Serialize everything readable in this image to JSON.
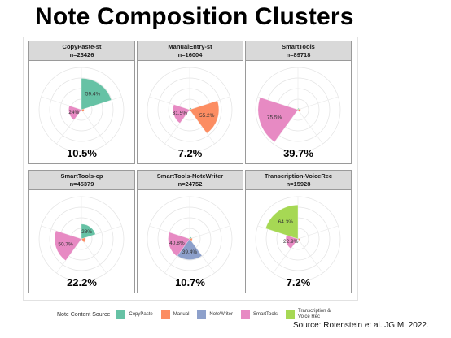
{
  "slide": {
    "title": "Note Composition Clusters",
    "source": "Source: Rotenstein et al. JGIM. 2022."
  },
  "colors": {
    "CopyPaste": "#66c2a5",
    "Manual": "#fc8d62",
    "NoteWriter": "#8da0cb",
    "SmartTools": "#e78ac3",
    "Transcription & Voice Rec": "#a6d854"
  },
  "chart_data": {
    "type": "polar-bar",
    "sources": [
      "CopyPaste",
      "Manual",
      "NoteWriter",
      "SmartTools",
      "Transcription & Voice Rec"
    ],
    "legend": {
      "title": "Note Content Source",
      "placement": "bottom",
      "items": [
        {
          "name": "CopyPaste",
          "label": "CopyPaste",
          "color": "#66c2a5"
        },
        {
          "name": "Manual",
          "label": "Manual",
          "color": "#fc8d62"
        },
        {
          "name": "NoteWriter",
          "label": "NoteWriter",
          "color": "#8da0cb"
        },
        {
          "name": "SmartTools",
          "label": "SmartTools",
          "color": "#e78ac3"
        },
        {
          "name": "Transcription & Voice Rec",
          "label": "Transcription &\nVoice Rec",
          "color": "#a6d854"
        }
      ]
    },
    "grid": true,
    "panels": [
      {
        "title": "CopyPaste-st",
        "n": "n=23426",
        "share": "10.5%",
        "values": [
          59.4,
          5,
          1,
          24,
          2
        ],
        "labels": [
          "59.4%",
          "",
          "",
          "24%",
          ""
        ]
      },
      {
        "title": "ManualEntry-st",
        "n": "n=16004",
        "share": "7.2%",
        "values": [
          4,
          55.2,
          2,
          31.5,
          1
        ],
        "labels": [
          "",
          "55.2%",
          "",
          "31.5%",
          ""
        ]
      },
      {
        "title": "SmartTools",
        "n": "n=89718",
        "share": "39.7%",
        "values": [
          3,
          5,
          1,
          75.5,
          2
        ],
        "labels": [
          "",
          "",
          "",
          "75.5%",
          ""
        ]
      },
      {
        "title": "SmartTools-cp",
        "n": "n=45379",
        "share": "22.2%",
        "values": [
          28,
          8,
          1,
          50.7,
          2
        ],
        "labels": [
          "28%",
          "",
          "",
          "50.7%",
          ""
        ]
      },
      {
        "title": "SmartTools-NoteWriter",
        "n": "n=24752",
        "share": "10.7%",
        "values": [
          4,
          5,
          39.4,
          40.8,
          2
        ],
        "labels": [
          "",
          "",
          "39.4%",
          "40.8%",
          ""
        ]
      },
      {
        "title": "Transcription-VoiceRec",
        "n": "n=15928",
        "share": "7.2%",
        "values": [
          2,
          4,
          1,
          22.9,
          64.3
        ],
        "labels": [
          "",
          "",
          "",
          "22.9%",
          "64.3%"
        ]
      }
    ]
  }
}
